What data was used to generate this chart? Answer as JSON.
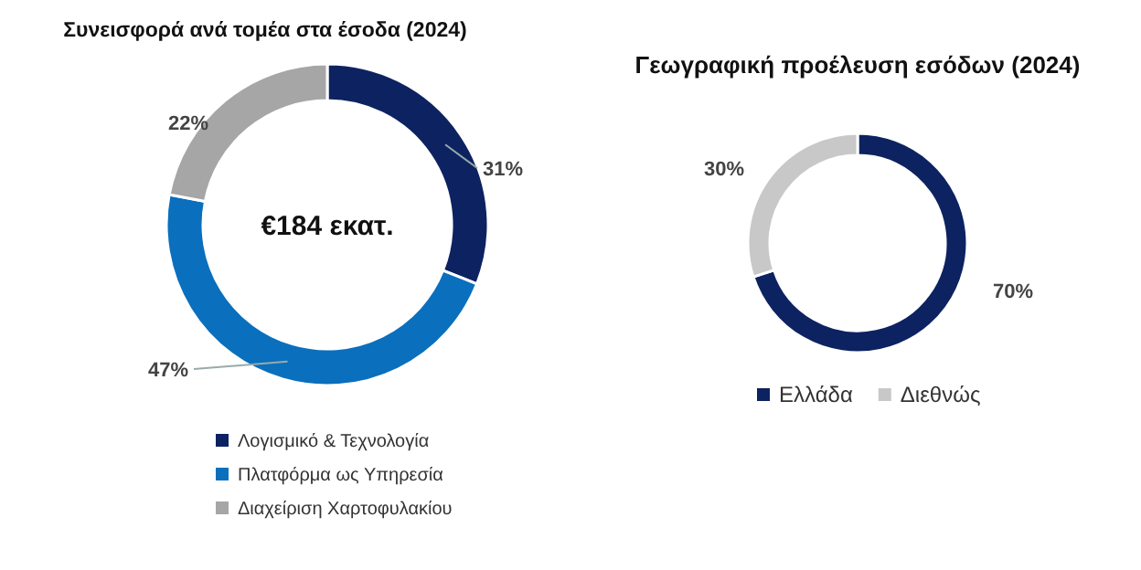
{
  "chart_data": [
    {
      "type": "donut",
      "title": "Συνεισφορά ανά τομέα στα έσοδα (2024)",
      "categories": [
        "Λογισμικό & Τεχνολογία",
        "Πλατφόρμα ως Υπηρεσία",
        "Διαχείριση Χαρτοφυλακίου"
      ],
      "values": [
        31,
        47,
        22
      ],
      "value_labels": [
        "31%",
        "47%",
        "22%"
      ],
      "colors": [
        "#0d2260",
        "#0a6fbd",
        "#a6a6a6"
      ],
      "annotations": [
        "€184 εκατ."
      ],
      "legend": "bottom"
    },
    {
      "type": "donut",
      "title": "Γεωγραφική προέλευση εσόδων (2024)",
      "categories": [
        "Ελλάδα",
        "Διεθνώς"
      ],
      "values": [
        70,
        30
      ],
      "value_labels": [
        "70%",
        "30%"
      ],
      "colors": [
        "#0d2260",
        "#c8c8c8"
      ],
      "legend": "bottom"
    }
  ]
}
